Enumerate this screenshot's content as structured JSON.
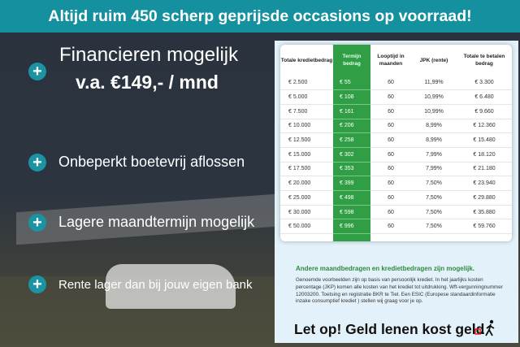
{
  "header": {
    "title": "Altijd ruim 450 scherp geprijsde occasions op voorraad!"
  },
  "features": [
    {
      "label": "Financieren mogelijk",
      "sub": "v.a. €149,- / mnd"
    },
    {
      "label": "Onbeperkt boetevrij aflossen"
    },
    {
      "label": "Lagere maandtermijn mogelijk"
    },
    {
      "label": "Rente lager dan bij jouw eigen bank"
    }
  ],
  "table": {
    "headers": [
      "Totale kredietbedrag",
      "Termijn bedrag",
      "Looptijd in maanden",
      "JPK (rente)",
      "Totale te betalen bedrag"
    ],
    "rows": [
      [
        "€ 2.500",
        "€ 55",
        "60",
        "11,99%",
        "€ 3.300"
      ],
      [
        "€ 5.000",
        "€ 108",
        "60",
        "10,99%",
        "€ 6.480"
      ],
      [
        "€ 7.500",
        "€ 161",
        "60",
        "10,99%",
        "€ 9.660"
      ],
      [
        "€ 10.000",
        "€ 206",
        "60",
        "8,99%",
        "€ 12.360"
      ],
      [
        "€ 12.500",
        "€ 258",
        "60",
        "8,99%",
        "€ 15.480"
      ],
      [
        "€ 15.000",
        "€ 302",
        "60",
        "7,99%",
        "€ 18.120"
      ],
      [
        "€ 17.500",
        "€ 353",
        "60",
        "7,99%",
        "€ 21.180"
      ],
      [
        "€ 20.000",
        "€ 399",
        "60",
        "7,50%",
        "€ 23.940"
      ],
      [
        "€ 25.000",
        "€ 498",
        "60",
        "7,50%",
        "€ 29.880"
      ],
      [
        "€ 30.000",
        "€ 598",
        "60",
        "7,50%",
        "€ 35.880"
      ],
      [
        "€ 50.000",
        "€ 996",
        "60",
        "7,50%",
        "€ 59.760"
      ]
    ],
    "highlight_color": "#2f9e45"
  },
  "info": {
    "other": "Andere maandbedragen en kredietbedragen zijn mogelijk.",
    "fine": "Genoemde voorbeelden zijn op basis van persoonlijk krediet. In het jaarlijks kosten percentage (JKP) komen alle kosten van het krediet tot uitdrukking. Wft-vergunningnummer 12003200. Toetsing en registratie BKR te Tiel. Een ESIC (Europese standaardinformatie inzake consumptief krediet ) stellen wij graag voor je op.",
    "warning": "Let op! Geld lenen kost geld"
  },
  "colors": {
    "teal": "#14909e",
    "green": "#2f9e45"
  }
}
